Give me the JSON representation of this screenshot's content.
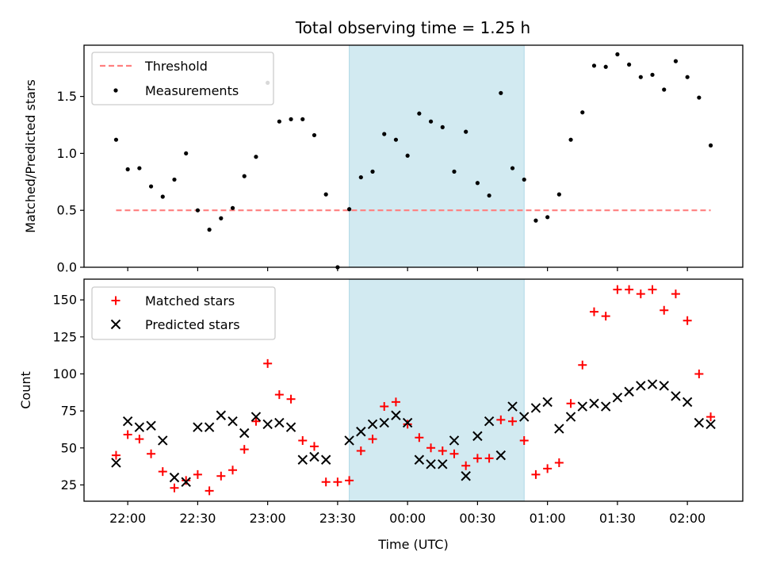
{
  "title": "Total observing time = 1.25 h",
  "colors": {
    "threshold": "#ff7f7f",
    "measurements": "#000000",
    "matched": "#ff0000",
    "predicted": "#000000",
    "shade": "#add8e6"
  },
  "chart_data": [
    {
      "type": "scatter",
      "ylabel": "Matched/Predicted stars",
      "ylim": [
        0,
        1.95
      ],
      "yticks": [
        "0.0",
        "0.5",
        "1.0",
        "1.5"
      ],
      "shaded_interval": [
        "23:35",
        "00:50"
      ],
      "legend": {
        "placement": "top-left",
        "threshold_label": "Threshold",
        "measurements_label": "Measurements"
      },
      "threshold": {
        "name": "Threshold",
        "y": 0.5,
        "x_range": [
          "21:55",
          "02:10"
        ]
      },
      "series": [
        {
          "name": "Measurements",
          "x": [
            "21:55",
            "22:00",
            "22:05",
            "22:10",
            "22:15",
            "22:20",
            "22:25",
            "22:30",
            "22:35",
            "22:40",
            "22:45",
            "22:50",
            "22:55",
            "23:00",
            "23:05",
            "23:10",
            "23:15",
            "23:20",
            "23:25",
            "23:30",
            "23:35",
            "23:40",
            "23:45",
            "23:50",
            "23:55",
            "00:00",
            "00:05",
            "00:10",
            "00:15",
            "00:20",
            "00:25",
            "00:30",
            "00:35",
            "00:40",
            "00:45",
            "00:50",
            "00:55",
            "01:00",
            "01:05",
            "01:10",
            "01:15",
            "01:20",
            "01:25",
            "01:30",
            "01:35",
            "01:40",
            "01:45",
            "01:50",
            "01:55",
            "02:00",
            "02:05",
            "02:10"
          ],
          "y": [
            1.12,
            0.86,
            0.87,
            0.71,
            0.62,
            0.77,
            1.0,
            0.5,
            0.33,
            0.43,
            0.52,
            0.8,
            0.97,
            1.62,
            1.28,
            1.3,
            1.3,
            1.16,
            0.64,
            0.0,
            0.51,
            0.79,
            0.84,
            1.17,
            1.12,
            0.98,
            1.35,
            1.28,
            1.23,
            0.84,
            1.19,
            0.74,
            0.63,
            1.53,
            0.87,
            0.77,
            0.41,
            0.44,
            0.64,
            1.12,
            1.36,
            1.77,
            1.76,
            1.87,
            1.78,
            1.67,
            1.69,
            1.56,
            1.81,
            1.67,
            1.49,
            1.07
          ]
        }
      ]
    },
    {
      "type": "scatter",
      "xlabel": "Time (UTC)",
      "ylabel": "Count",
      "ylim": [
        14,
        164
      ],
      "yticks": [
        "25",
        "50",
        "75",
        "100",
        "125",
        "150"
      ],
      "xticks": [
        "22:00",
        "22:30",
        "23:00",
        "23:30",
        "00:00",
        "00:30",
        "01:00",
        "01:30",
        "02:00"
      ],
      "shaded_interval": [
        "23:35",
        "00:50"
      ],
      "legend": {
        "placement": "top-left",
        "matched_label": "Matched stars",
        "predicted_label": "Predicted stars"
      },
      "series": [
        {
          "name": "Matched stars",
          "x": [
            "21:55",
            "22:00",
            "22:05",
            "22:10",
            "22:15",
            "22:20",
            "22:25",
            "22:30",
            "22:35",
            "22:40",
            "22:45",
            "22:50",
            "22:55",
            "23:00",
            "23:05",
            "23:10",
            "23:15",
            "23:20",
            "23:25",
            "23:30",
            "23:35",
            "23:40",
            "23:45",
            "23:50",
            "23:55",
            "00:00",
            "00:05",
            "00:10",
            "00:15",
            "00:20",
            "00:25",
            "00:30",
            "00:35",
            "00:40",
            "00:45",
            "00:50",
            "00:55",
            "01:00",
            "01:05",
            "01:10",
            "01:15",
            "01:20",
            "01:25",
            "01:30",
            "01:35",
            "01:40",
            "01:45",
            "01:50",
            "01:55",
            "02:00",
            "02:05",
            "02:10"
          ],
          "y": [
            45,
            59,
            56,
            46,
            34,
            23,
            28,
            32,
            21,
            31,
            35,
            49,
            68,
            107,
            86,
            83,
            55,
            51,
            27,
            27,
            28,
            48,
            56,
            78,
            81,
            66,
            57,
            50,
            48,
            46,
            38,
            43,
            43,
            69,
            68,
            55,
            32,
            36,
            40,
            80,
            106,
            142,
            139,
            157,
            157,
            154,
            157,
            143,
            154,
            136,
            100,
            71
          ]
        },
        {
          "name": "Predicted stars",
          "x": [
            "21:55",
            "22:00",
            "22:05",
            "22:10",
            "22:15",
            "22:20",
            "22:25",
            "22:30",
            "22:35",
            "22:40",
            "22:45",
            "22:50",
            "22:55",
            "23:00",
            "23:05",
            "23:10",
            "23:15",
            "23:20",
            "23:25",
            "23:35",
            "23:40",
            "23:45",
            "23:50",
            "23:55",
            "00:00",
            "00:05",
            "00:10",
            "00:15",
            "00:20",
            "00:25",
            "00:30",
            "00:35",
            "00:40",
            "00:45",
            "00:50",
            "00:55",
            "01:00",
            "01:05",
            "01:10",
            "01:15",
            "01:20",
            "01:25",
            "01:30",
            "01:35",
            "01:40",
            "01:45",
            "01:50",
            "01:55",
            "02:00",
            "02:05",
            "02:10"
          ],
          "y": [
            40,
            68,
            64,
            65,
            55,
            30,
            27,
            64,
            64,
            72,
            68,
            60,
            71,
            66,
            67,
            64,
            42,
            44,
            42,
            55,
            61,
            66,
            67,
            72,
            67,
            42,
            39,
            39,
            55,
            31,
            58,
            68,
            45,
            78,
            71,
            77,
            81,
            63,
            71,
            78,
            80,
            78,
            84,
            88,
            92,
            93,
            92,
            85,
            81,
            67,
            66
          ]
        }
      ]
    }
  ]
}
